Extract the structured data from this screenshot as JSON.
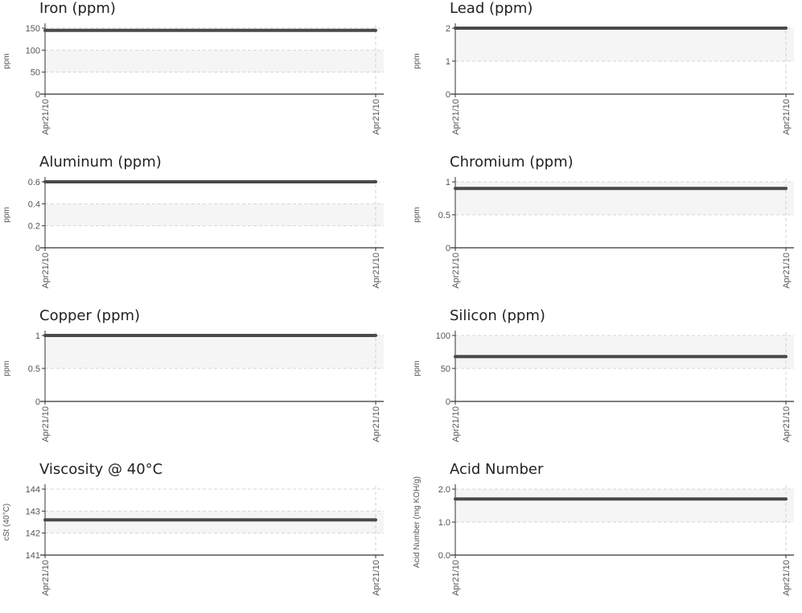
{
  "chart_data": [
    {
      "type": "line",
      "title": "Iron (ppm)",
      "ylabel": "ppm",
      "x": [
        "Apr21/10",
        "Apr21/10"
      ],
      "ylim": [
        0,
        150
      ],
      "yticks": [
        "0",
        "50",
        "100",
        "150"
      ],
      "band": [
        50,
        100
      ],
      "series": [
        {
          "values": [
            145,
            145
          ]
        }
      ]
    },
    {
      "type": "line",
      "title": "Lead (ppm)",
      "ylabel": "ppm",
      "x": [
        "Apr21/10",
        "Apr21/10"
      ],
      "ylim": [
        0,
        2
      ],
      "yticks": [
        "0",
        "1",
        "2"
      ],
      "band": [
        1,
        2
      ],
      "series": [
        {
          "values": [
            2,
            2
          ]
        }
      ]
    },
    {
      "type": "line",
      "title": "Aluminum (ppm)",
      "ylabel": "ppm",
      "x": [
        "Apr21/10",
        "Apr21/10"
      ],
      "ylim": [
        0,
        0.6
      ],
      "yticks": [
        "0",
        "0.2",
        "0.4",
        "0.6"
      ],
      "band": [
        0.2,
        0.4
      ],
      "series": [
        {
          "values": [
            0.6,
            0.6
          ]
        }
      ]
    },
    {
      "type": "line",
      "title": "Chromium (ppm)",
      "ylabel": "ppm",
      "x": [
        "Apr21/10",
        "Apr21/10"
      ],
      "ylim": [
        0,
        1
      ],
      "yticks": [
        "0",
        "0.5",
        "1"
      ],
      "band": [
        0.5,
        1
      ],
      "series": [
        {
          "values": [
            0.9,
            0.9
          ]
        }
      ]
    },
    {
      "type": "line",
      "title": "Copper (ppm)",
      "ylabel": "ppm",
      "x": [
        "Apr21/10",
        "Apr21/10"
      ],
      "ylim": [
        0,
        1
      ],
      "yticks": [
        "0",
        "0.5",
        "1"
      ],
      "band": [
        0.5,
        1
      ],
      "series": [
        {
          "values": [
            1,
            1
          ]
        }
      ]
    },
    {
      "type": "line",
      "title": "Silicon (ppm)",
      "ylabel": "ppm",
      "x": [
        "Apr21/10",
        "Apr21/10"
      ],
      "ylim": [
        0,
        100
      ],
      "yticks": [
        "0",
        "50",
        "100"
      ],
      "band": [
        50,
        100
      ],
      "series": [
        {
          "values": [
            68,
            68
          ]
        }
      ]
    },
    {
      "type": "line",
      "title": "Viscosity @ 40°C",
      "ylabel": "cSt (40°C)",
      "x": [
        "Apr21/10",
        "Apr21/10"
      ],
      "ylim": [
        141,
        144
      ],
      "yticks": [
        "141",
        "142",
        "143",
        "144"
      ],
      "band": [
        142,
        143
      ],
      "series": [
        {
          "values": [
            142.6,
            142.6
          ]
        }
      ]
    },
    {
      "type": "line",
      "title": "Acid Number",
      "ylabel": "Acid Number (mg KOH/g)",
      "x": [
        "Apr21/10",
        "Apr21/10"
      ],
      "ylim": [
        0,
        2
      ],
      "yticks": [
        "0.0",
        "1.0",
        "2.0"
      ],
      "band": [
        1,
        2
      ],
      "series": [
        {
          "values": [
            1.7,
            1.7
          ]
        }
      ]
    }
  ]
}
